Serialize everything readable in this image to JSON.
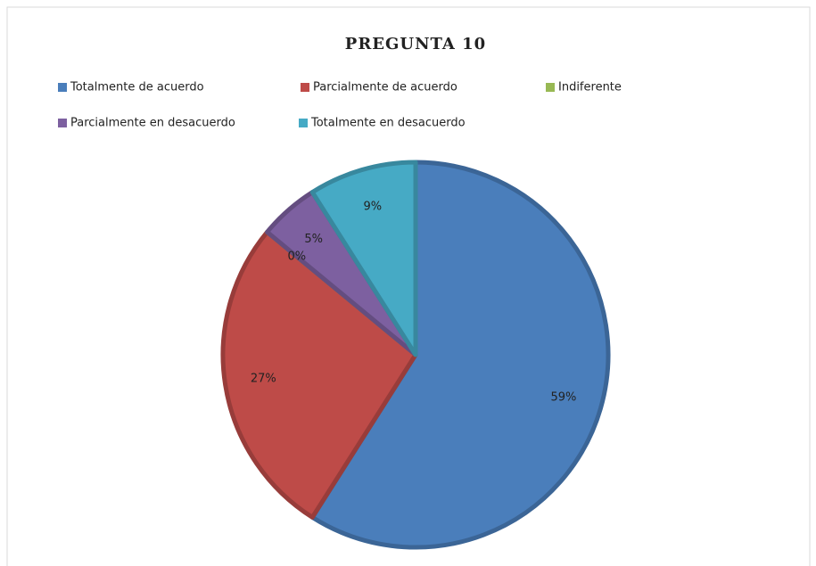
{
  "chart_data": {
    "type": "pie",
    "title": "PREGUNTA 10",
    "categories": [
      "Totalmente de acuerdo",
      "Parcialmente de acuerdo",
      "Indiferente",
      "Parcialmente en desacuerdo",
      "Totalmente en desacuerdo"
    ],
    "values": [
      59,
      27,
      0,
      5,
      9
    ],
    "value_labels": [
      "59%",
      "27%",
      "0%",
      "5%",
      "9%"
    ],
    "colors": [
      "#4a7ebb",
      "#be4b48",
      "#98b954",
      "#7d60a0",
      "#46aac5"
    ],
    "legend": "top"
  }
}
